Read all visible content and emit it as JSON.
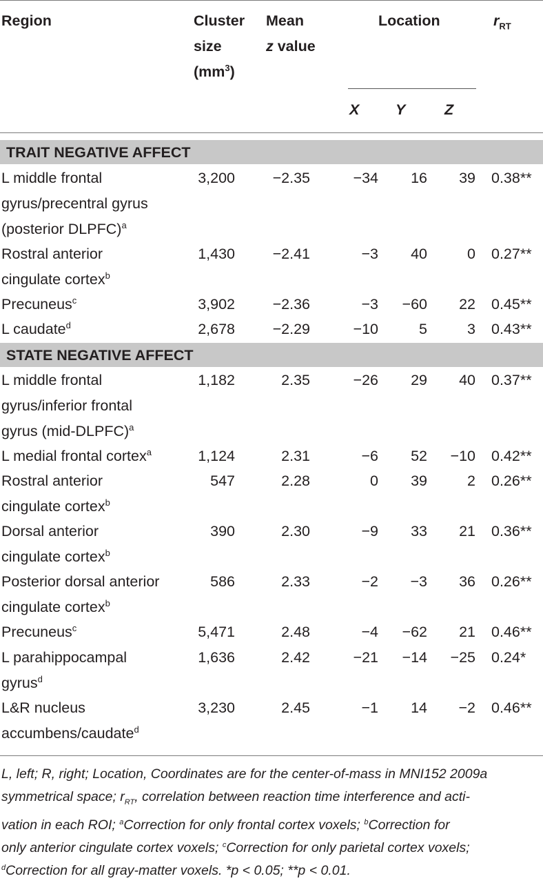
{
  "header": {
    "region": "Region",
    "cluster_l1": "Cluster",
    "cluster_l2": "size",
    "cluster_l3": "(mm",
    "cluster_sup": "3",
    "cluster_end": ")",
    "mean_l1": "Mean",
    "mean_l2_italic": "z",
    "mean_l2_rest": " value",
    "location": "Location",
    "r_main": "r",
    "r_sub": "RT",
    "x": "X",
    "y": "Y",
    "z": "Z"
  },
  "sections": [
    {
      "title": "TRAIT NEGATIVE AFFECT",
      "rows": [
        {
          "region_lines": [
            "L middle frontal",
            "gyrus/precentral gyrus",
            "(posterior DLPFC)"
          ],
          "sup": "a",
          "cluster": "3,200",
          "z": "−2.35",
          "x": "−34",
          "y": "16",
          "zc": "39",
          "r": "0.38**"
        },
        {
          "region_lines": [
            "Rostral anterior",
            "cingulate cortex"
          ],
          "sup": "b",
          "cluster": "1,430",
          "z": "−2.41",
          "x": "−3",
          "y": "40",
          "zc": "0",
          "r": "0.27**"
        },
        {
          "region_lines": [
            "Precuneus"
          ],
          "sup": "c",
          "cluster": "3,902",
          "z": "−2.36",
          "x": "−3",
          "y": "−60",
          "zc": "22",
          "r": "0.45**"
        },
        {
          "region_lines": [
            "L caudate"
          ],
          "sup": "d",
          "cluster": "2,678",
          "z": "−2.29",
          "x": "−10",
          "y": "5",
          "zc": "3",
          "r": "0.43**"
        }
      ]
    },
    {
      "title": "STATE NEGATIVE AFFECT",
      "rows": [
        {
          "region_lines": [
            "L middle frontal",
            "gyrus/inferior frontal",
            "gyrus (mid-DLPFC)"
          ],
          "sup": "a",
          "cluster": "1,182",
          "z": "2.35",
          "x": "−26",
          "y": "29",
          "zc": "40",
          "r": "0.37**"
        },
        {
          "region_lines": [
            "L medial frontal cortex"
          ],
          "sup": "a",
          "cluster": "1,124",
          "z": "2.31",
          "x": "−6",
          "y": "52",
          "zc": "−10",
          "r": "0.42**"
        },
        {
          "region_lines": [
            "Rostral anterior",
            "cingulate cortex"
          ],
          "sup": "b",
          "cluster": "547",
          "z": "2.28",
          "x": "0",
          "y": "39",
          "zc": "2",
          "r": "0.26**"
        },
        {
          "region_lines": [
            "Dorsal anterior",
            "cingulate cortex"
          ],
          "sup": "b",
          "cluster": "390",
          "z": "2.30",
          "x": "−9",
          "y": "33",
          "zc": "21",
          "r": "0.36**"
        },
        {
          "region_lines": [
            "Posterior dorsal anterior",
            "cingulate cortex"
          ],
          "sup": "b",
          "cluster": "586",
          "z": "2.33",
          "x": "−2",
          "y": "−3",
          "zc": "36",
          "r": "0.26**"
        },
        {
          "region_lines": [
            "Precuneus"
          ],
          "sup": "c",
          "cluster": "5,471",
          "z": "2.48",
          "x": "−4",
          "y": "−62",
          "zc": "21",
          "r": "0.46**"
        },
        {
          "region_lines": [
            "L parahippocampal",
            "gyrus"
          ],
          "sup": "d",
          "cluster": "1,636",
          "z": "2.42",
          "x": "−21",
          "y": "−14",
          "zc": "−25",
          "r": "0.24*"
        },
        {
          "region_lines": [
            "L&R nucleus",
            "accumbens/caudate"
          ],
          "sup": "d",
          "cluster": "3,230",
          "z": "2.45",
          "x": "−1",
          "y": "14",
          "zc": "−2",
          "r": "0.46**"
        }
      ]
    }
  ],
  "footnote": {
    "line1": "L, left; R, right; Location, Coordinates are for the center-of-mass in MNI152 2009a",
    "line2_a": "symmetrical space; r",
    "line2_sub": "RT",
    "line2_b": ", correlation between reaction time interference and acti-",
    "line3_a": "vation in each ROI; ",
    "line3_sa": "a",
    "line3_b": "Correction for only frontal cortex voxels; ",
    "line3_sb": "b",
    "line3_c": "Correction for",
    "line4_a": "only anterior cingulate cortex voxels; ",
    "line4_sc": "c",
    "line4_b": "Correction for only parietal cortex voxels;",
    "line5_sd": "d",
    "line5_a": "Correction for all gray-matter voxels. *p < 0.05; **p < 0.01."
  }
}
